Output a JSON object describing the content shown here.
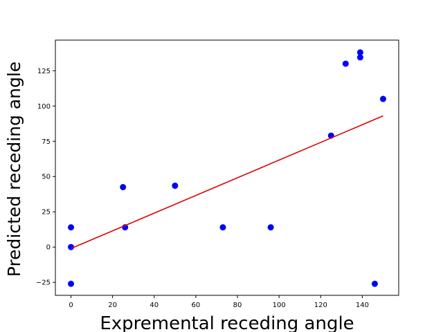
{
  "chart_data": {
    "type": "scatter",
    "xlabel": "Expremental receding angle",
    "ylabel": "Predicted receding angle",
    "xlim": [
      -7.5,
      157.5
    ],
    "ylim": [
      -34.2,
      146.7
    ],
    "xticks": [
      0,
      20,
      40,
      60,
      80,
      100,
      120,
      140
    ],
    "yticks": [
      -25,
      0,
      25,
      50,
      75,
      100,
      125
    ],
    "x_tick_labels": [
      "0",
      "20",
      "40",
      "60",
      "80",
      "100",
      "120",
      "140"
    ],
    "y_tick_labels": [
      "−25",
      "0",
      "25",
      "50",
      "75",
      "100",
      "125"
    ],
    "grid": false,
    "series": [
      {
        "type": "scatter",
        "color": "#0000ff",
        "points": [
          {
            "x": 0,
            "y": 14
          },
          {
            "x": 0,
            "y": 0
          },
          {
            "x": 0,
            "y": -26
          },
          {
            "x": 25,
            "y": 42.5
          },
          {
            "x": 26,
            "y": 14
          },
          {
            "x": 50,
            "y": 43.5
          },
          {
            "x": 73,
            "y": 14
          },
          {
            "x": 96,
            "y": 14
          },
          {
            "x": 125,
            "y": 79
          },
          {
            "x": 132,
            "y": 130
          },
          {
            "x": 139,
            "y": 138
          },
          {
            "x": 139,
            "y": 134.5
          },
          {
            "x": 146,
            "y": -26
          },
          {
            "x": 150,
            "y": 105
          }
        ]
      },
      {
        "type": "line",
        "color": "#dd0000",
        "points": [
          {
            "x": 0,
            "y": -1
          },
          {
            "x": 150,
            "y": 93
          }
        ]
      }
    ]
  }
}
